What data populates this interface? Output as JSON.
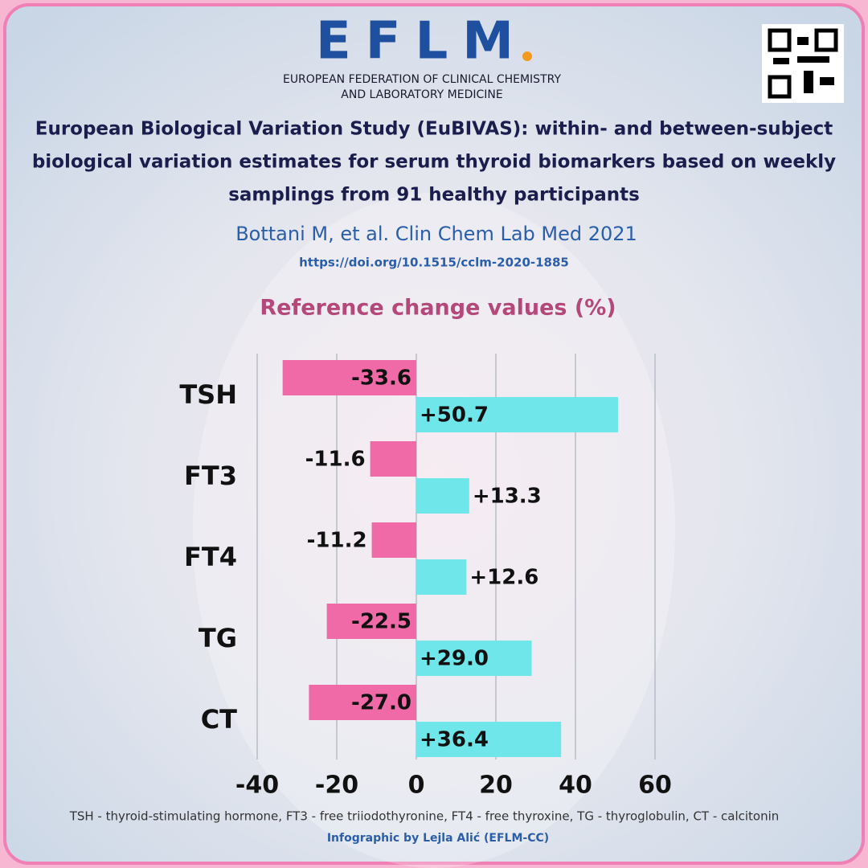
{
  "header": {
    "logo": "EFLM",
    "organization": [
      "EUROPEAN FEDERATION OF CLINICAL CHEMISTRY",
      "AND LABORATORY MEDICINE"
    ]
  },
  "article": {
    "title_lines": [
      "European Biological Variation Study (EuBIVAS): within- and between-subject",
      "biological variation estimates for serum thyroid biomarkers based on weekly",
      "samplings from 91 healthy participants"
    ],
    "citation": "Bottani M, et al. Clin Chem Lab Med  2021",
    "doi": "https://doi.org/10.1515/cclm-2020-1885"
  },
  "chart_data": {
    "type": "bar",
    "orientation": "horizontal",
    "title": "Reference change values (%)",
    "categories": [
      "TSH",
      "FT3",
      "FT4",
      "TG",
      "CT"
    ],
    "series": [
      {
        "color": "#f06aa8",
        "values": [
          -33.6,
          -11.6,
          -11.2,
          -22.5,
          -27.0
        ],
        "value_labels": [
          "-33.6",
          "-11.6",
          "-11.2",
          "-22.5",
          "-27.0"
        ]
      },
      {
        "color": "#6ee6ea",
        "values": [
          50.7,
          13.3,
          12.6,
          29.0,
          36.4
        ],
        "value_labels": [
          "+50.7",
          "+13.3",
          "+12.6",
          "+29.0",
          "+36.4"
        ]
      }
    ],
    "xlim": [
      -40,
      60
    ],
    "xticks": [
      -40,
      -20,
      0,
      20,
      40,
      60
    ],
    "grid": true
  },
  "footer": {
    "note": "TSH - thyroid-stimulating hormone, FT3 - free triiodothyronine, FT4 - free thyroxine, TG - thyroglobulin, CT - calcitonin",
    "credit": "Infographic by Lejla Alić (EFLM-CC)"
  }
}
